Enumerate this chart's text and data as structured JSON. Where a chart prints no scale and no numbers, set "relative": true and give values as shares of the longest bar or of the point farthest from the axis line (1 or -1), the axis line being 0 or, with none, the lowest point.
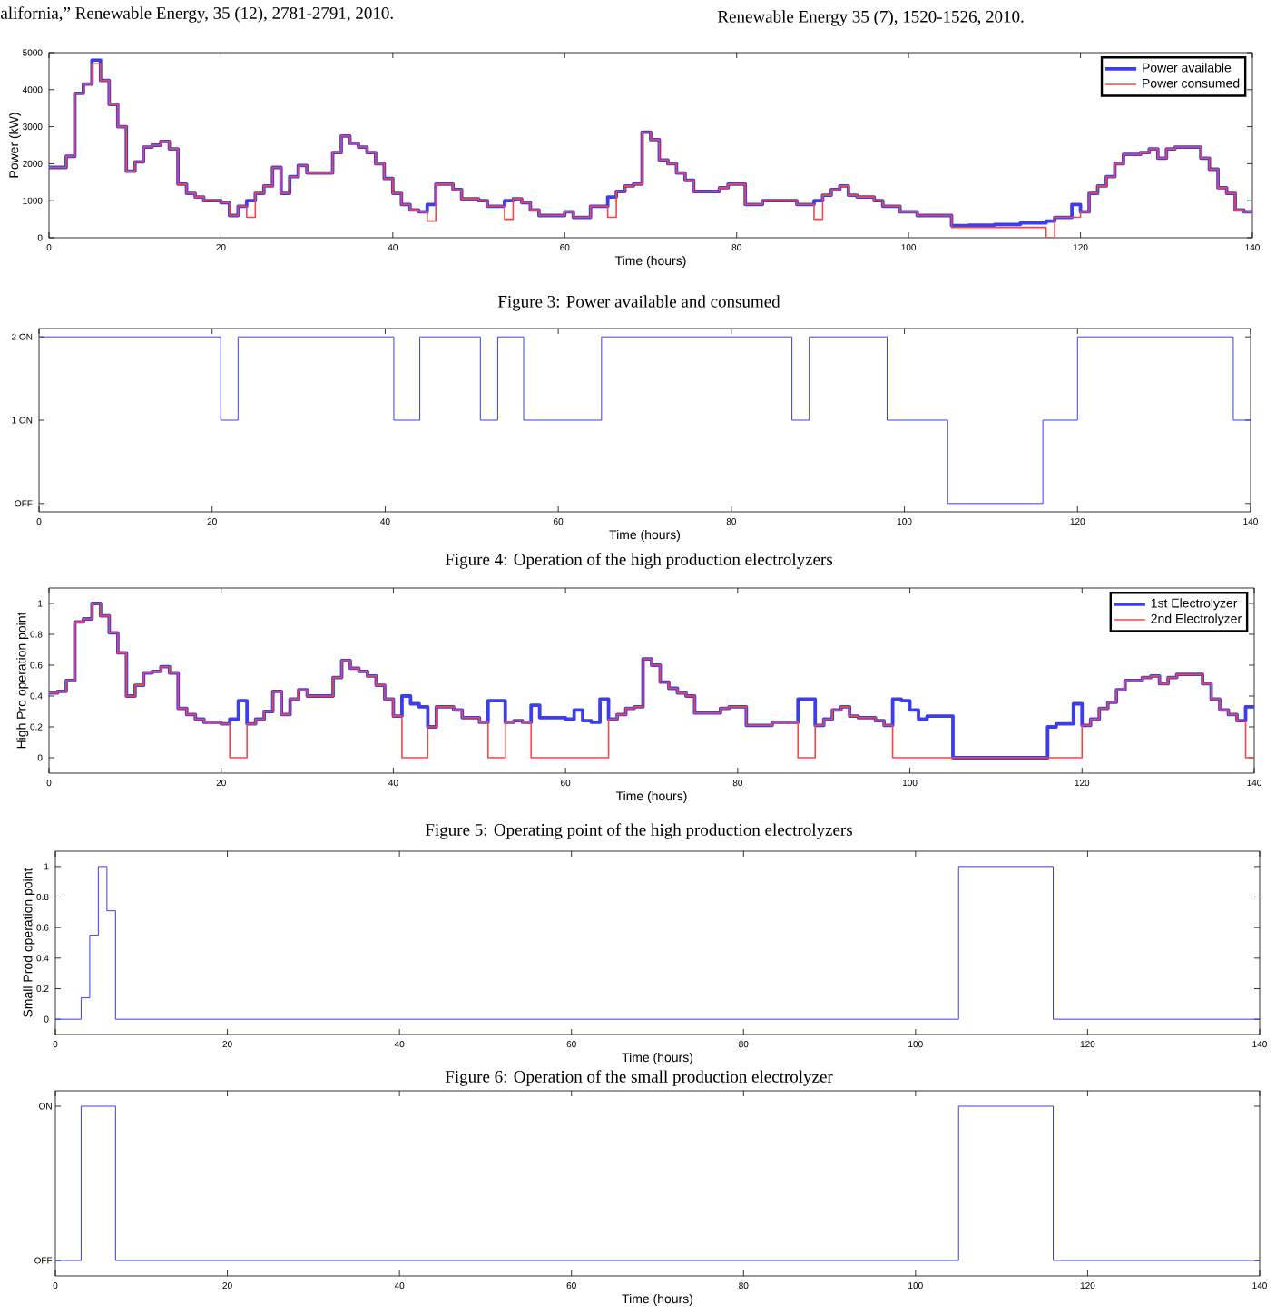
{
  "chart_data": [
    {
      "type": "step",
      "xlabel": "Time (hours)",
      "ylabel": "Power (kW)",
      "legend": "top right",
      "annotations": [
        "alifornia,” Renewable Energy, 35 (12), 2781-2791, 2010.",
        "Renewable Energy 35 (7), 1520-1526, 2010.",
        "Figure 3: Power available and consumed"
      ],
      "xlim": [
        0,
        140
      ],
      "xticks": [
        0,
        20,
        40,
        60,
        80,
        100,
        120,
        140
      ],
      "ylim": [
        0,
        5000
      ],
      "yticks": [
        0,
        1000,
        2000,
        3000,
        4000,
        5000
      ],
      "x": [
        0,
        2,
        3,
        4,
        5,
        6,
        7,
        8,
        9,
        10,
        11,
        12,
        13,
        14,
        15,
        16,
        17,
        18,
        20,
        21,
        22,
        23,
        24,
        25,
        26,
        27,
        28,
        29,
        30,
        33,
        34,
        35,
        36,
        37,
        38,
        39,
        40,
        41,
        42,
        43,
        44,
        45,
        47,
        48,
        50,
        51,
        53,
        54,
        55,
        56,
        57,
        60,
        61,
        63,
        65,
        66,
        67,
        68,
        69,
        70,
        71,
        72,
        73,
        74,
        75,
        78,
        79,
        81,
        83,
        87,
        89,
        90,
        91,
        92,
        93,
        94,
        96,
        97,
        99,
        101,
        105,
        107,
        110,
        113,
        116,
        117,
        119,
        120,
        121,
        122,
        123,
        124,
        125,
        127,
        128,
        129,
        130,
        131,
        134,
        135,
        136,
        137,
        138,
        139,
        140
      ],
      "series": [
        {
          "name": "Power available",
          "color": "#3c3cf0",
          "values": [
            1900,
            2200,
            3900,
            4150,
            4800,
            4250,
            3600,
            3000,
            1800,
            2050,
            2450,
            2500,
            2600,
            2400,
            1450,
            1200,
            1100,
            1000,
            950,
            600,
            850,
            1000,
            1200,
            1400,
            1900,
            1200,
            1650,
            1950,
            1750,
            2300,
            2750,
            2550,
            2450,
            2300,
            2000,
            1600,
            1200,
            900,
            750,
            700,
            900,
            1450,
            1300,
            1050,
            1000,
            850,
            1000,
            1050,
            950,
            750,
            600,
            700,
            550,
            850,
            1100,
            1250,
            1400,
            1450,
            2850,
            2650,
            2100,
            2000,
            1750,
            1550,
            1250,
            1350,
            1450,
            900,
            1000,
            900,
            1000,
            1150,
            1300,
            1400,
            1150,
            1100,
            1000,
            850,
            700,
            600,
            330,
            340,
            360,
            400,
            450,
            550,
            900,
            700,
            1200,
            1400,
            1650,
            2000,
            2250,
            2300,
            2400,
            2150,
            2400,
            2450,
            2150,
            1850,
            1350,
            1200,
            750,
            700,
            700
          ]
        },
        {
          "name": "Power consumed",
          "color": "#f04848",
          "values": [
            1900,
            2200,
            3900,
            4150,
            4700,
            4250,
            3600,
            3000,
            1800,
            2050,
            2450,
            2500,
            2600,
            2400,
            1450,
            1200,
            1100,
            1000,
            950,
            600,
            850,
            550,
            1200,
            1400,
            1900,
            1200,
            1650,
            1950,
            1750,
            2300,
            2750,
            2550,
            2450,
            2300,
            2000,
            1600,
            1200,
            900,
            750,
            700,
            450,
            1450,
            1300,
            1050,
            1000,
            850,
            500,
            1050,
            950,
            750,
            600,
            700,
            550,
            850,
            550,
            1250,
            1400,
            1450,
            2850,
            2650,
            2100,
            2000,
            1750,
            1550,
            1250,
            1350,
            1450,
            900,
            1000,
            900,
            500,
            1150,
            1300,
            1400,
            1150,
            1100,
            1000,
            850,
            700,
            600,
            280,
            280,
            280,
            280,
            0,
            550,
            550,
            700,
            1200,
            1400,
            1650,
            2000,
            2250,
            2300,
            2400,
            2150,
            2400,
            2450,
            2150,
            1850,
            1350,
            1200,
            750,
            700,
            700
          ]
        }
      ]
    },
    {
      "type": "step",
      "xlabel": "Time (hours)",
      "annotations": [
        "Figure 4: Operation of the high production electrolyzers"
      ],
      "xlim": [
        0,
        140
      ],
      "xticks": [
        0,
        20,
        40,
        60,
        80,
        100,
        120,
        140
      ],
      "ylim": [
        -0.1,
        2.1
      ],
      "yticks": [
        {
          "value": 0,
          "label": "OFF"
        },
        {
          "value": 1,
          "label": "1 ON"
        },
        {
          "value": 2,
          "label": "2 ON"
        }
      ],
      "x": [
        0,
        21,
        23,
        41,
        44,
        51,
        53,
        56,
        65,
        87,
        89,
        98,
        105,
        116,
        120,
        138,
        140
      ],
      "series": [
        {
          "color": "#3c3cf0",
          "values": [
            2,
            1,
            2,
            1,
            2,
            1,
            2,
            1,
            2,
            1,
            2,
            1,
            0,
            1,
            2,
            1,
            1
          ]
        }
      ]
    },
    {
      "type": "step",
      "xlabel": "Time (hours)",
      "ylabel": "High Pro operation point",
      "legend": "top right",
      "annotations": [
        "Figure 5:  Operating point of the high production electrolyzers"
      ],
      "xlim": [
        0,
        140
      ],
      "xticks": [
        0,
        20,
        40,
        60,
        80,
        100,
        120,
        140
      ],
      "ylim": [
        -0.1,
        1.1
      ],
      "yticks": [
        0,
        0.2,
        0.4,
        0.6,
        0.8,
        1
      ],
      "x": [
        0,
        1,
        2,
        3,
        4,
        5,
        6,
        7,
        8,
        9,
        10,
        11,
        12,
        13,
        14,
        15,
        16,
        17,
        18,
        20,
        21,
        22,
        23,
        24,
        25,
        26,
        27,
        28,
        29,
        30,
        33,
        34,
        35,
        36,
        37,
        38,
        39,
        40,
        41,
        42,
        43,
        44,
        45,
        47,
        48,
        50,
        51,
        53,
        54,
        55,
        56,
        57,
        60,
        61,
        62,
        63,
        64,
        65,
        66,
        67,
        68,
        69,
        70,
        71,
        72,
        73,
        74,
        75,
        78,
        79,
        81,
        84,
        87,
        89,
        90,
        91,
        92,
        93,
        94,
        96,
        97,
        98,
        99,
        100,
        101,
        102,
        105,
        116,
        117,
        119,
        120,
        121,
        122,
        123,
        124,
        125,
        127,
        128,
        129,
        130,
        131,
        134,
        135,
        136,
        137,
        138,
        139,
        140
      ],
      "series": [
        {
          "name": "1st Electrolyzer",
          "color": "#3c3cf0",
          "values": [
            0.42,
            0.43,
            0.5,
            0.88,
            0.9,
            1.0,
            0.92,
            0.81,
            0.68,
            0.4,
            0.47,
            0.55,
            0.56,
            0.59,
            0.55,
            0.32,
            0.28,
            0.25,
            0.23,
            0.22,
            0.25,
            0.37,
            0.22,
            0.25,
            0.3,
            0.43,
            0.28,
            0.38,
            0.44,
            0.4,
            0.52,
            0.63,
            0.58,
            0.56,
            0.53,
            0.47,
            0.38,
            0.27,
            0.4,
            0.35,
            0.33,
            0.2,
            0.33,
            0.31,
            0.26,
            0.23,
            0.37,
            0.23,
            0.24,
            0.23,
            0.34,
            0.26,
            0.25,
            0.31,
            0.24,
            0.23,
            0.38,
            0.25,
            0.28,
            0.32,
            0.33,
            0.64,
            0.6,
            0.49,
            0.45,
            0.42,
            0.4,
            0.29,
            0.32,
            0.33,
            0.21,
            0.23,
            0.38,
            0.21,
            0.25,
            0.31,
            0.33,
            0.27,
            0.26,
            0.24,
            0.21,
            0.38,
            0.37,
            0.31,
            0.25,
            0.27,
            0,
            0.2,
            0.22,
            0.35,
            0.21,
            0.25,
            0.32,
            0.36,
            0.44,
            0.5,
            0.52,
            0.53,
            0.48,
            0.52,
            0.54,
            0.48,
            0.38,
            0.31,
            0.28,
            0.24,
            0.33,
            0.33
          ]
        },
        {
          "name": "2nd Electrolyzer",
          "color": "#f04848",
          "values": [
            0.42,
            0.43,
            0.5,
            0.88,
            0.9,
            1.0,
            0.92,
            0.81,
            0.68,
            0.4,
            0.47,
            0.55,
            0.56,
            0.59,
            0.55,
            0.32,
            0.28,
            0.25,
            0.23,
            0.22,
            0,
            0,
            0.22,
            0.25,
            0.3,
            0.43,
            0.28,
            0.38,
            0.44,
            0.4,
            0.52,
            0.63,
            0.58,
            0.56,
            0.53,
            0.47,
            0.38,
            0.27,
            0,
            0,
            0,
            0.2,
            0.33,
            0.31,
            0.26,
            0.23,
            0,
            0.23,
            0.24,
            0.23,
            0,
            0,
            0,
            0,
            0,
            0,
            0,
            0.25,
            0.28,
            0.32,
            0.33,
            0.64,
            0.6,
            0.49,
            0.45,
            0.42,
            0.4,
            0.29,
            0.32,
            0.33,
            0.21,
            0.23,
            0,
            0.21,
            0.25,
            0.31,
            0.33,
            0.27,
            0.26,
            0.24,
            0.21,
            0,
            0,
            0,
            0,
            0,
            0,
            0,
            0,
            0,
            0.21,
            0.25,
            0.32,
            0.36,
            0.44,
            0.5,
            0.52,
            0.53,
            0.48,
            0.52,
            0.54,
            0.48,
            0.38,
            0.31,
            0.28,
            0.24,
            0,
            0
          ]
        }
      ]
    },
    {
      "type": "step",
      "xlabel": "Time (hours)",
      "ylabel": "Small Prod operation point",
      "annotations": [
        "Figure 6: Operation of the small production electrolyzer"
      ],
      "xlim": [
        0,
        140
      ],
      "xticks": [
        0,
        20,
        40,
        60,
        80,
        100,
        120,
        140
      ],
      "ylim": [
        -0.1,
        1.1
      ],
      "yticks": [
        0,
        0.2,
        0.4,
        0.6,
        0.8,
        1
      ],
      "x": [
        0,
        3,
        4,
        5,
        6,
        7,
        105,
        116,
        140
      ],
      "series": [
        {
          "color": "#3c3cf0",
          "values": [
            0,
            0.14,
            0.55,
            1,
            0.71,
            0,
            1,
            0,
            0
          ]
        }
      ]
    },
    {
      "type": "step",
      "xlabel": "Time (hours)",
      "xlim": [
        0,
        140
      ],
      "xticks": [
        0,
        20,
        40,
        60,
        80,
        100,
        120,
        140
      ],
      "relative": true,
      "annotations": [
        "ON",
        "OFF"
      ],
      "x": [
        0,
        3,
        7,
        105,
        116,
        140
      ],
      "series": [
        {
          "color": "#3c3cf0",
          "values": [
            0,
            1,
            0,
            1,
            0,
            0
          ]
        }
      ]
    }
  ]
}
